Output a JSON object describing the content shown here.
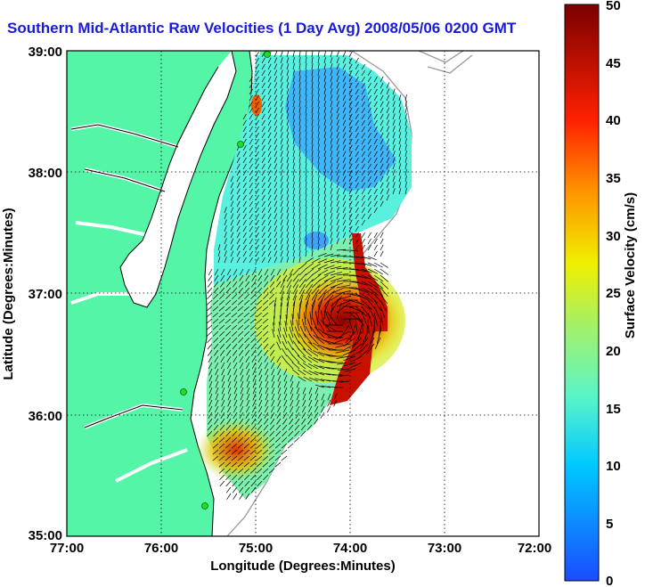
{
  "title": "Southern Mid-Atlantic Raw Velocities (1 Day Avg) 2008/05/06 0200 GMT",
  "map": {
    "xlabel": "Longitude (Degrees:Minutes)",
    "ylabel": "Latitude (Degrees:Minutes)",
    "x_ticks": [
      "77:00",
      "76:00",
      "75:00",
      "74:00",
      "73:00",
      "72:00"
    ],
    "y_ticks": [
      "39:00",
      "38:00",
      "37:00",
      "36:00",
      "35:00"
    ],
    "xlim": [
      -77,
      -72
    ],
    "ylim": [
      35,
      39
    ],
    "grid": true,
    "land_color": "#55f5a8"
  },
  "colorbar": {
    "label": "Surface Velocity (cm/s)",
    "ticks": [
      "50",
      "45",
      "40",
      "35",
      "30",
      "25",
      "20",
      "15",
      "10",
      "5",
      "0"
    ],
    "range": [
      0,
      50
    ]
  }
}
